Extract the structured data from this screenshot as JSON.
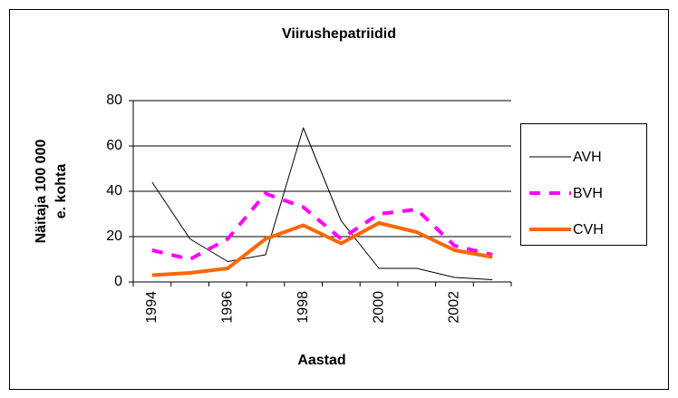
{
  "chart_data": {
    "type": "line",
    "title": "Viirushepatriidid",
    "xlabel": "Aastad",
    "ylabel": [
      "Näitaja 100 000",
      "e. kohta"
    ],
    "categories": [
      "1994",
      null,
      "1996",
      null,
      "1998",
      null,
      "2000",
      null,
      "2002",
      null
    ],
    "series": [
      {
        "name": "AVH",
        "color": "#000000",
        "values": [
          44,
          19,
          9,
          12,
          68,
          27,
          6,
          6,
          2,
          1
        ]
      },
      {
        "name": "BVH",
        "color": "#ff00ff",
        "values": [
          14,
          10,
          19,
          39,
          33,
          19,
          30,
          32,
          16,
          12
        ]
      },
      {
        "name": "CVH",
        "color": "#ff6600",
        "values": [
          3,
          4,
          6,
          19,
          25,
          17,
          26,
          22,
          14,
          11
        ]
      }
    ],
    "ylim": [
      0,
      80
    ],
    "yticks": [
      0,
      20,
      40,
      60,
      80
    ],
    "grid": true,
    "legend": "right"
  }
}
